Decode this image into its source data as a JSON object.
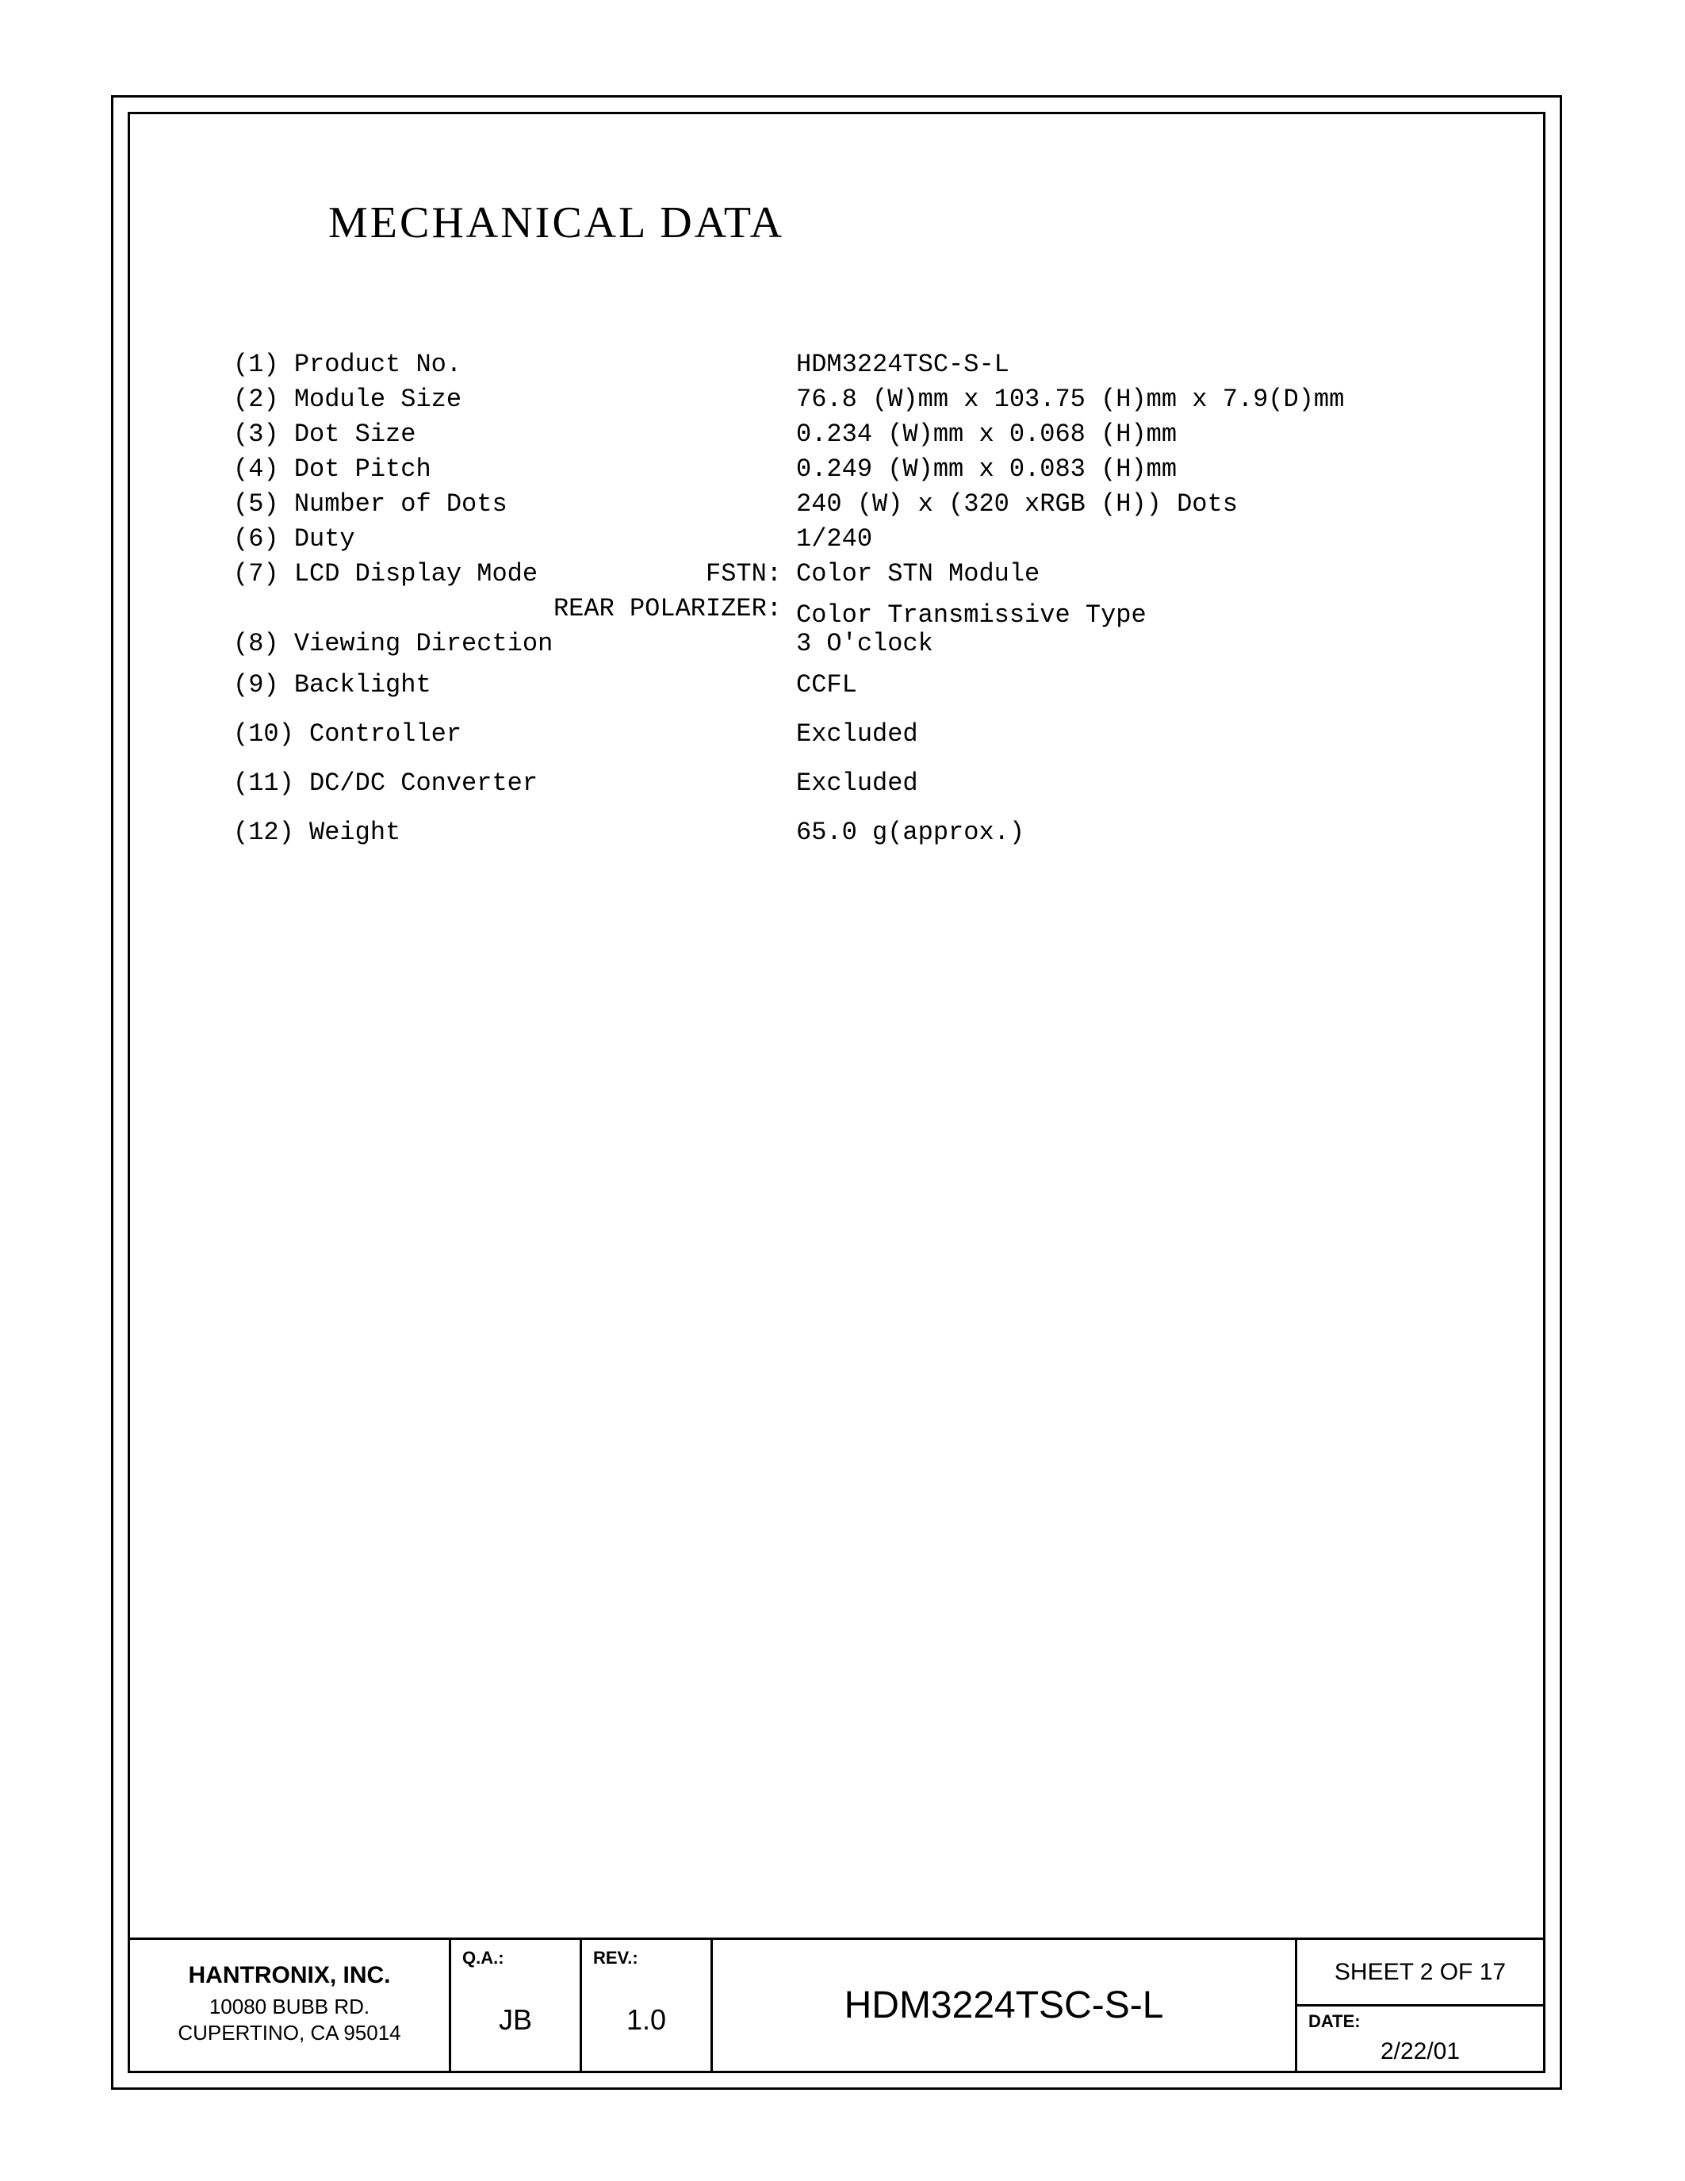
{
  "title": "MECHANICAL DATA",
  "specs": [
    {
      "left": "(1) Product No.",
      "mid": "",
      "value": "HDM3224TSC-S-L",
      "gap": "h-small"
    },
    {
      "left": "(2) Module Size",
      "mid": "",
      "value": "76.8 (W)mm  x 103.75 (H)mm x 7.9(D)mm",
      "gap": "h-small"
    },
    {
      "left": "(3) Dot Size",
      "mid": "",
      "value": "0.234 (W)mm x  0.068 (H)mm",
      "gap": "h-small"
    },
    {
      "left": "(4) Dot Pitch",
      "mid": "",
      "value": "0.249 (W)mm x  0.083 (H)mm",
      "gap": "h-small"
    },
    {
      "left": "(5) Number of Dots",
      "mid": "",
      "value": "240 (W)     x   (320 xRGB (H))  Dots",
      "gap": "h-small"
    },
    {
      "left": "(6) Duty",
      "mid": "",
      "value": "1/240",
      "gap": "h-small"
    },
    {
      "left": "(7) LCD Display Mode",
      "mid": "FSTN:",
      "value": "Color STN Module",
      "gap": "h-small"
    },
    {
      "left": "",
      "mid": "REAR POLARIZER:",
      "value": "Color Transmissive Type",
      "gap": "h-small"
    },
    {
      "left": "(8) Viewing Direction",
      "mid": "",
      "value": "3 O'clock",
      "gap": "h-med"
    },
    {
      "left": "(9) Backlight",
      "mid": "",
      "value": "CCFL",
      "gap": "h-large"
    },
    {
      "left": "(10) Controller",
      "mid": "",
      "value": "Excluded",
      "gap": "h-large"
    },
    {
      "left": "(11) DC/DC Converter",
      "mid": "",
      "value": "Excluded",
      "gap": "h-large"
    },
    {
      "left": "(12) Weight",
      "mid": "",
      "value": "65.0 g(approx.)",
      "gap": "h-large"
    }
  ],
  "titleblock": {
    "company_name": "HANTRONIX, INC.",
    "company_addr1": "10080 BUBB RD.",
    "company_addr2": "CUPERTINO, CA 95014",
    "qa_label": "Q.A.:",
    "qa_value": "JB",
    "rev_label": "REV.:",
    "rev_value": "1.0",
    "part_number": "HDM3224TSC-S-L",
    "sheet": "SHEET 2 OF 17",
    "date_label": "DATE:",
    "date_value": "2/22/01"
  }
}
